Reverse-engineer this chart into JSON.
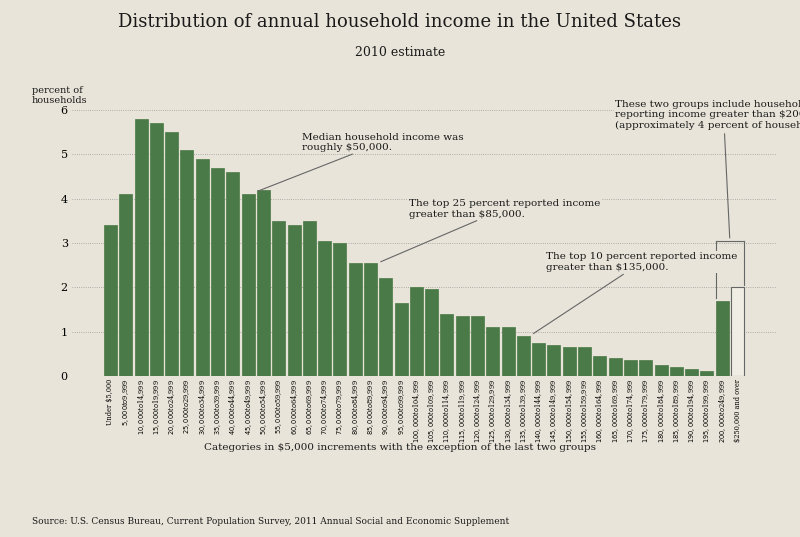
{
  "title": "Distribution of annual household income in the United States",
  "subtitle": "2010 estimate",
  "ylabel": "percent of\nhouseholds",
  "xlabel": "Categories in $5,000 increments with the exception of the last two groups",
  "source": "Source: U.S. Census Bureau, Current Population Survey, 2011 Annual Social and Economic Supplement",
  "background_color": "#e8e4d9",
  "bar_color": "#4a7a47",
  "last_bar_color": "#f0ede4",
  "categories": [
    "Under $5,000",
    "$5,000 to $9,999",
    "$10,000 to $14,999",
    "$15,000 to $19,999",
    "$20,000 to $24,999",
    "$25,000 to $29,999",
    "$30,000 to $34,999",
    "$35,000 to $39,999",
    "$40,000 to $44,999",
    "$45,000 to $49,999",
    "$50,000 to $54,999",
    "$55,000 to $59,999",
    "$60,000 to $64,999",
    "$65,000 to $69,999",
    "$70,000 to $74,999",
    "$75,000 to $79,999",
    "$80,000 to $84,999",
    "$85,000 to $89,999",
    "$90,000 to $94,999",
    "$95,000 to $99,999",
    "$100,000 to $104,999",
    "$105,000 to $109,999",
    "$110,000 to $114,999",
    "$115,000 to $119,999",
    "$120,000 to $124,999",
    "$125,000 to $129,999",
    "$130,000 to $134,999",
    "$135,000 to $139,999",
    "$140,000 to $144,999",
    "$145,000 to $149,999",
    "$150,000 to $154,999",
    "$155,000 to $159,999",
    "$160,000 to $164,999",
    "$165,000 to $169,999",
    "$170,000 to $174,999",
    "$175,000 to $179,999",
    "$180,000 to $184,999",
    "$185,000 to $189,999",
    "$190,000 to $194,999",
    "$195,000 to $199,999",
    "$200,000 to $249,999",
    "$250,000 and over"
  ],
  "values": [
    3.4,
    4.1,
    5.8,
    5.7,
    5.5,
    5.1,
    4.9,
    4.7,
    4.6,
    4.1,
    4.2,
    3.5,
    3.4,
    3.5,
    3.05,
    3.0,
    2.55,
    2.55,
    2.2,
    1.65,
    2.0,
    1.95,
    1.4,
    1.35,
    1.35,
    1.1,
    1.1,
    0.9,
    0.75,
    0.7,
    0.65,
    0.65,
    0.45,
    0.4,
    0.35,
    0.35,
    0.25,
    0.2,
    0.15,
    0.1,
    1.7,
    2.0
  ],
  "ylim": [
    0,
    6.3
  ],
  "yticks": [
    0,
    1,
    2,
    3,
    4,
    5,
    6
  ]
}
